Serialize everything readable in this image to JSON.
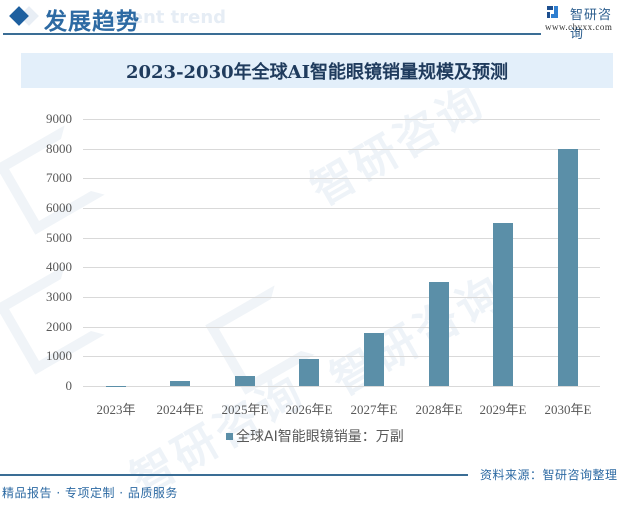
{
  "header": {
    "section_title": "发展趋势",
    "ghost_text": "ment trend",
    "logo_name": "智研咨询",
    "logo_url": "www.chyxx.com",
    "icons": {
      "bullet": "diamond-icon",
      "logo": "chyxx-logo-icon"
    }
  },
  "watermark": {
    "text": "智研咨询"
  },
  "colors": {
    "accent": "#1d5f9f",
    "bar": "#5b8fa8",
    "title_banner_bg": "#e3effa",
    "title_text": "#1f3b5d",
    "gridline": "#d9d9d9",
    "footer_text": "#2d6aa3"
  },
  "chart_data": {
    "type": "bar",
    "title": "2023-2030年全球AI智能眼镜销量规模及预测",
    "xlabel": "",
    "ylabel": "",
    "categories": [
      "2023年",
      "2024年E",
      "2025年E",
      "2026年E",
      "2027年E",
      "2028年E",
      "2029年E",
      "2030年E"
    ],
    "series": [
      {
        "name": "全球AI智能眼镜销量：万副",
        "values": [
          10,
          160,
          350,
          900,
          1800,
          3500,
          5500,
          8000
        ]
      }
    ],
    "ylim": [
      0,
      9000
    ],
    "yticks": [
      0,
      1000,
      2000,
      3000,
      4000,
      5000,
      6000,
      7000,
      8000,
      9000
    ],
    "grid": true,
    "legend_position": "bottom"
  },
  "footer": {
    "source": "资料来源：智研咨询整理",
    "slogan": "精品报告 · 专项定制 · 品质服务"
  }
}
